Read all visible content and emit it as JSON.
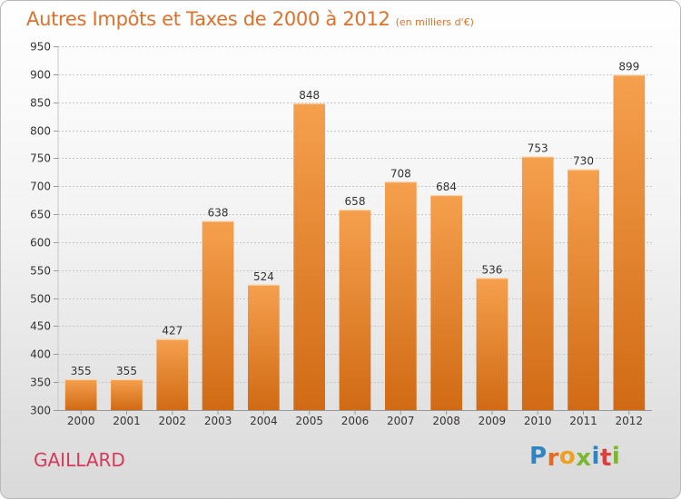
{
  "chart_data": {
    "type": "bar",
    "title": "Autres Impôts et Taxes de 2000 à 2012",
    "subtitle": "(en milliers d'€)",
    "categories": [
      "2000",
      "2001",
      "2002",
      "2003",
      "2004",
      "2005",
      "2006",
      "2007",
      "2008",
      "2009",
      "2010",
      "2011",
      "2012"
    ],
    "values": [
      355,
      355,
      427,
      638,
      524,
      848,
      658,
      708,
      684,
      536,
      753,
      730,
      899
    ],
    "ylim": [
      300,
      950
    ],
    "yticks": [
      300,
      350,
      400,
      450,
      500,
      550,
      600,
      650,
      700,
      750,
      800,
      850,
      900,
      950
    ],
    "grid": true,
    "bar_color_top": "#f5a04e",
    "bar_color_bottom": "#d16a14"
  },
  "footer": {
    "city": "GAILLARD",
    "logo_letters": [
      "P",
      "r",
      "o",
      "x",
      "i",
      "t",
      "i"
    ],
    "logo_colors": [
      "#2f84c4",
      "#e86a1e",
      "#f0a020",
      "#7cb82f",
      "#2f84c4",
      "#e23b3b",
      "#7cb82f"
    ]
  }
}
